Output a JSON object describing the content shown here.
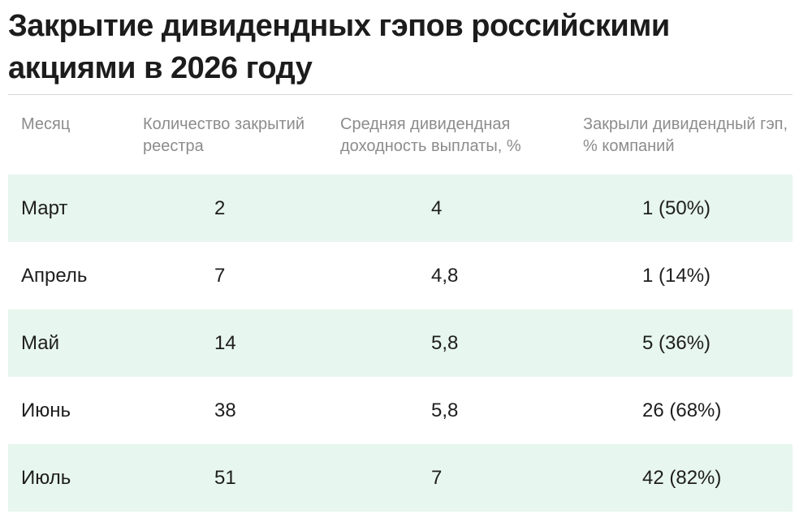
{
  "title": "Закрытие дивидендных гэпов российскими акциями в 2026 году",
  "columns": [
    "Месяц",
    "Количество закрытий реестра",
    "Средняя дивидендная доходность выплаты, %",
    "Закрыли дивидендный гэп, % компаний"
  ],
  "rows": [
    {
      "month": "Март",
      "closures": "2",
      "yield": "4",
      "closed_gap": "1 (50%)"
    },
    {
      "month": "Апрель",
      "closures": "7",
      "yield": "4,8",
      "closed_gap": "1 (14%)"
    },
    {
      "month": "Май",
      "closures": "14",
      "yield": "5,8",
      "closed_gap": "5 (36%)"
    },
    {
      "month": "Июнь",
      "closures": "38",
      "yield": "5,8",
      "closed_gap": "26 (68%)"
    },
    {
      "month": "Июль",
      "closures": "51",
      "yield": "7",
      "closed_gap": "42 (82%)"
    }
  ],
  "colors": {
    "row_stripe": "#e7f6ee",
    "header_text": "#8c8c8c",
    "body_text": "#1e1e1e"
  }
}
